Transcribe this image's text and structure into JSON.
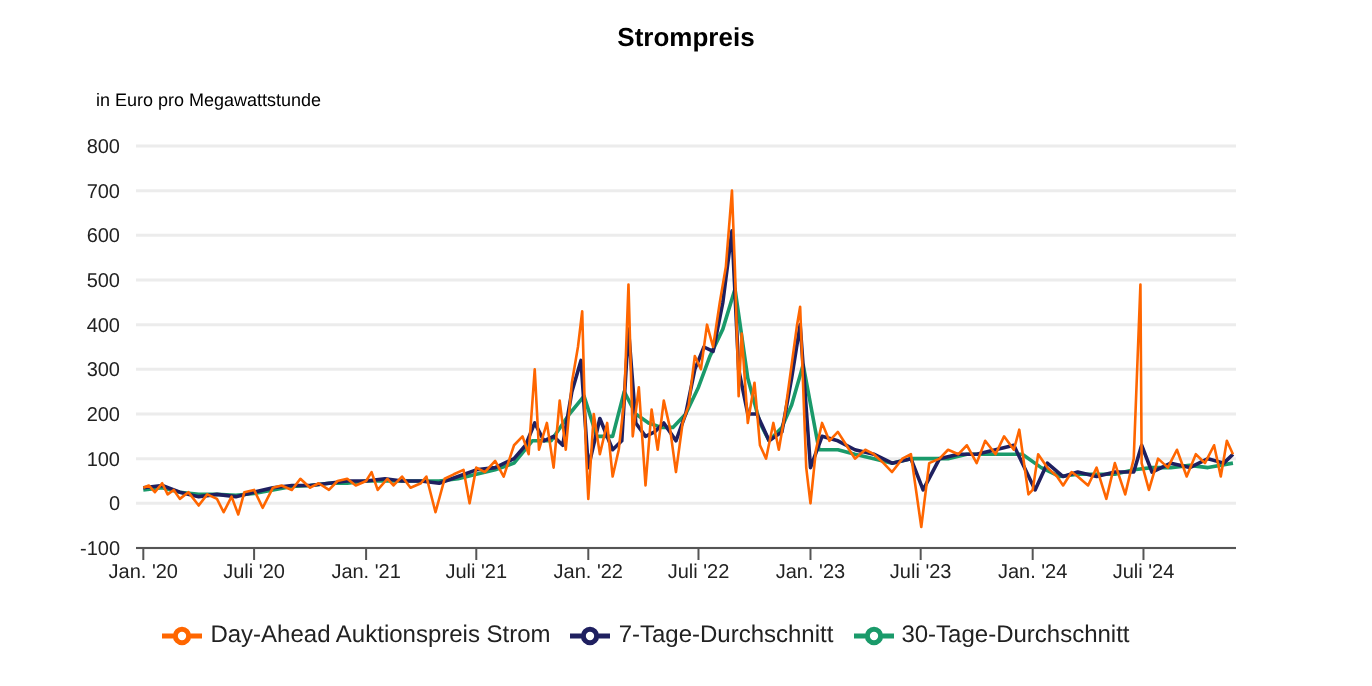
{
  "chart_data": {
    "type": "line",
    "title": "Strompreis",
    "ylabel": "in Euro pro Megawattstunde",
    "xlim": [
      "2019-12-20",
      "2024-11-30"
    ],
    "xticks": [
      {
        "value": "2020-01-01",
        "label": "Jan. '20"
      },
      {
        "value": "2020-07-01",
        "label": "Juli '20"
      },
      {
        "value": "2021-01-01",
        "label": "Jan. '21"
      },
      {
        "value": "2021-07-01",
        "label": "Juli '21"
      },
      {
        "value": "2022-01-01",
        "label": "Jan. '22"
      },
      {
        "value": "2022-07-01",
        "label": "Juli '22"
      },
      {
        "value": "2023-01-01",
        "label": "Jan. '23"
      },
      {
        "value": "2023-07-01",
        "label": "Juli '23"
      },
      {
        "value": "2024-01-01",
        "label": "Jan. '24"
      },
      {
        "value": "2024-07-01",
        "label": "Juli '24"
      }
    ],
    "ylim": [
      -100,
      800
    ],
    "yticks": [
      -100,
      0,
      100,
      200,
      300,
      400,
      500,
      600,
      700,
      800
    ],
    "grid": "y",
    "legend": "bottom",
    "series": [
      {
        "name": "Day-Ahead Auktionspreis Strom",
        "color": "#ff6600",
        "x": [
          "2020-01-01",
          "2020-01-10",
          "2020-01-20",
          "2020-02-01",
          "2020-02-10",
          "2020-02-20",
          "2020-03-01",
          "2020-03-15",
          "2020-04-01",
          "2020-04-15",
          "2020-05-01",
          "2020-05-12",
          "2020-05-25",
          "2020-06-05",
          "2020-06-15",
          "2020-07-01",
          "2020-07-15",
          "2020-08-01",
          "2020-08-15",
          "2020-09-01",
          "2020-09-15",
          "2020-10-01",
          "2020-10-15",
          "2020-11-01",
          "2020-11-15",
          "2020-12-01",
          "2020-12-15",
          "2021-01-01",
          "2021-01-10",
          "2021-01-20",
          "2021-02-05",
          "2021-02-15",
          "2021-03-01",
          "2021-03-15",
          "2021-04-01",
          "2021-04-10",
          "2021-04-25",
          "2021-05-10",
          "2021-05-25",
          "2021-06-10",
          "2021-06-20",
          "2021-07-01",
          "2021-07-15",
          "2021-08-01",
          "2021-08-15",
          "2021-09-01",
          "2021-09-15",
          "2021-09-25",
          "2021-10-05",
          "2021-10-12",
          "2021-10-25",
          "2021-11-05",
          "2021-11-15",
          "2021-11-25",
          "2021-12-05",
          "2021-12-15",
          "2021-12-22",
          "2021-12-28",
          "2022-01-01",
          "2022-01-10",
          "2022-01-20",
          "2022-02-01",
          "2022-02-10",
          "2022-02-20",
          "2022-03-01",
          "2022-03-08",
          "2022-03-15",
          "2022-03-25",
          "2022-04-05",
          "2022-04-15",
          "2022-04-25",
          "2022-05-05",
          "2022-05-15",
          "2022-05-25",
          "2022-06-05",
          "2022-06-15",
          "2022-06-25",
          "2022-07-05",
          "2022-07-15",
          "2022-07-25",
          "2022-08-05",
          "2022-08-15",
          "2022-08-25",
          "2022-08-30",
          "2022-09-05",
          "2022-09-10",
          "2022-09-20",
          "2022-10-01",
          "2022-10-10",
          "2022-10-20",
          "2022-11-01",
          "2022-11-10",
          "2022-11-20",
          "2022-12-01",
          "2022-12-10",
          "2022-12-15",
          "2022-12-25",
          "2023-01-01",
          "2023-01-10",
          "2023-01-20",
          "2023-02-01",
          "2023-02-15",
          "2023-03-01",
          "2023-03-15",
          "2023-04-01",
          "2023-04-15",
          "2023-05-01",
          "2023-05-15",
          "2023-06-01",
          "2023-06-15",
          "2023-07-02",
          "2023-07-15",
          "2023-08-01",
          "2023-08-15",
          "2023-09-01",
          "2023-09-15",
          "2023-10-01",
          "2023-10-15",
          "2023-11-01",
          "2023-11-15",
          "2023-12-01",
          "2023-12-10",
          "2023-12-25",
          "2024-01-01",
          "2024-01-10",
          "2024-01-25",
          "2024-02-10",
          "2024-02-20",
          "2024-03-05",
          "2024-03-15",
          "2024-04-01",
          "2024-04-15",
          "2024-05-01",
          "2024-05-15",
          "2024-06-01",
          "2024-06-15",
          "2024-06-26",
          "2024-06-28",
          "2024-07-10",
          "2024-07-25",
          "2024-08-10",
          "2024-08-25",
          "2024-09-10",
          "2024-09-25",
          "2024-10-10",
          "2024-10-25",
          "2024-11-05",
          "2024-11-15",
          "2024-11-25"
        ],
        "values": [
          35,
          40,
          25,
          45,
          20,
          30,
          10,
          25,
          -5,
          20,
          10,
          -20,
          15,
          -25,
          25,
          30,
          -10,
          35,
          40,
          30,
          55,
          35,
          45,
          30,
          50,
          55,
          40,
          50,
          70,
          30,
          55,
          40,
          60,
          35,
          45,
          60,
          -20,
          55,
          65,
          75,
          0,
          80,
          70,
          95,
          60,
          130,
          150,
          110,
          300,
          120,
          180,
          80,
          230,
          120,
          270,
          350,
          430,
          120,
          10,
          200,
          110,
          180,
          60,
          120,
          230,
          490,
          150,
          260,
          40,
          210,
          120,
          230,
          170,
          70,
          180,
          220,
          330,
          300,
          400,
          350,
          450,
          530,
          700,
          520,
          240,
          380,
          180,
          270,
          130,
          100,
          180,
          120,
          200,
          310,
          400,
          440,
          80,
          0,
          120,
          180,
          140,
          160,
          130,
          100,
          120,
          110,
          90,
          70,
          100,
          110,
          -53,
          90,
          100,
          120,
          110,
          130,
          90,
          140,
          110,
          150,
          120,
          165,
          20,
          30,
          110,
          80,
          60,
          40,
          70,
          60,
          40,
          80,
          10,
          90,
          20,
          100,
          490,
          90,
          30,
          100,
          80,
          120,
          60,
          110,
          90,
          130,
          60,
          140,
          110
        ]
      },
      {
        "name": "7-Tage-Durchschnitt",
        "color": "#1f2060",
        "x": [
          "2020-01-01",
          "2020-02-01",
          "2020-03-01",
          "2020-04-01",
          "2020-05-01",
          "2020-06-01",
          "2020-07-01",
          "2020-08-01",
          "2020-09-01",
          "2020-10-01",
          "2020-11-01",
          "2020-12-01",
          "2021-01-01",
          "2021-02-01",
          "2021-03-01",
          "2021-04-01",
          "2021-05-01",
          "2021-06-01",
          "2021-07-01",
          "2021-08-01",
          "2021-09-01",
          "2021-09-20",
          "2021-10-05",
          "2021-10-20",
          "2021-11-05",
          "2021-11-20",
          "2021-12-05",
          "2021-12-20",
          "2022-01-01",
          "2022-01-20",
          "2022-02-10",
          "2022-02-25",
          "2022-03-08",
          "2022-03-20",
          "2022-04-05",
          "2022-04-20",
          "2022-05-05",
          "2022-05-25",
          "2022-06-10",
          "2022-06-25",
          "2022-07-10",
          "2022-07-25",
          "2022-08-10",
          "2022-08-25",
          "2022-09-05",
          "2022-09-20",
          "2022-10-05",
          "2022-10-25",
          "2022-11-15",
          "2022-12-01",
          "2022-12-15",
          "2023-01-01",
          "2023-01-20",
          "2023-02-15",
          "2023-03-15",
          "2023-04-15",
          "2023-05-15",
          "2023-06-15",
          "2023-07-05",
          "2023-08-01",
          "2023-09-01",
          "2023-10-01",
          "2023-11-01",
          "2023-12-01",
          "2024-01-05",
          "2024-01-25",
          "2024-02-20",
          "2024-03-15",
          "2024-04-15",
          "2024-05-15",
          "2024-06-15",
          "2024-06-28",
          "2024-07-15",
          "2024-08-15",
          "2024-09-15",
          "2024-10-15",
          "2024-11-10",
          "2024-11-25"
        ],
        "values": [
          35,
          40,
          25,
          15,
          20,
          15,
          25,
          35,
          40,
          40,
          45,
          50,
          50,
          55,
          50,
          50,
          45,
          60,
          75,
          80,
          100,
          130,
          180,
          140,
          150,
          130,
          250,
          320,
          80,
          190,
          120,
          140,
          390,
          180,
          150,
          160,
          180,
          140,
          200,
          300,
          350,
          340,
          450,
          610,
          300,
          200,
          200,
          140,
          160,
          280,
          400,
          80,
          150,
          140,
          120,
          110,
          90,
          100,
          30,
          100,
          110,
          110,
          120,
          130,
          30,
          90,
          60,
          70,
          60,
          70,
          70,
          130,
          70,
          90,
          80,
          100,
          90,
          110
        ]
      },
      {
        "name": "30-Tage-Durchschnitt",
        "color": "#1a9a6a",
        "x": [
          "2020-01-01",
          "2020-02-01",
          "2020-03-01",
          "2020-04-01",
          "2020-05-01",
          "2020-06-01",
          "2020-07-01",
          "2020-08-01",
          "2020-09-01",
          "2020-10-01",
          "2020-11-01",
          "2020-12-01",
          "2021-01-01",
          "2021-02-01",
          "2021-03-01",
          "2021-04-01",
          "2021-05-01",
          "2021-06-01",
          "2021-07-01",
          "2021-08-01",
          "2021-09-01",
          "2021-10-01",
          "2021-11-01",
          "2021-12-01",
          "2021-12-25",
          "2022-01-15",
          "2022-02-10",
          "2022-03-01",
          "2022-03-20",
          "2022-04-10",
          "2022-05-01",
          "2022-05-20",
          "2022-06-10",
          "2022-07-01",
          "2022-07-20",
          "2022-08-10",
          "2022-08-30",
          "2022-09-20",
          "2022-10-10",
          "2022-10-25",
          "2022-11-15",
          "2022-12-01",
          "2022-12-20",
          "2023-01-15",
          "2023-02-15",
          "2023-03-15",
          "2023-04-15",
          "2023-05-15",
          "2023-06-15",
          "2023-07-15",
          "2023-08-15",
          "2023-09-15",
          "2023-10-15",
          "2023-11-15",
          "2023-12-15",
          "2024-01-15",
          "2024-02-15",
          "2024-03-15",
          "2024-04-15",
          "2024-05-15",
          "2024-06-15",
          "2024-07-15",
          "2024-08-15",
          "2024-09-15",
          "2024-10-15",
          "2024-11-25"
        ],
        "values": [
          30,
          35,
          25,
          20,
          20,
          18,
          22,
          30,
          38,
          40,
          45,
          45,
          50,
          50,
          50,
          50,
          50,
          55,
          65,
          75,
          90,
          140,
          140,
          200,
          240,
          150,
          150,
          250,
          200,
          180,
          170,
          170,
          200,
          260,
          330,
          390,
          480,
          280,
          180,
          140,
          170,
          220,
          310,
          120,
          120,
          110,
          100,
          90,
          100,
          100,
          100,
          110,
          110,
          110,
          110,
          80,
          60,
          65,
          65,
          65,
          75,
          80,
          80,
          85,
          80,
          90
        ]
      }
    ]
  }
}
